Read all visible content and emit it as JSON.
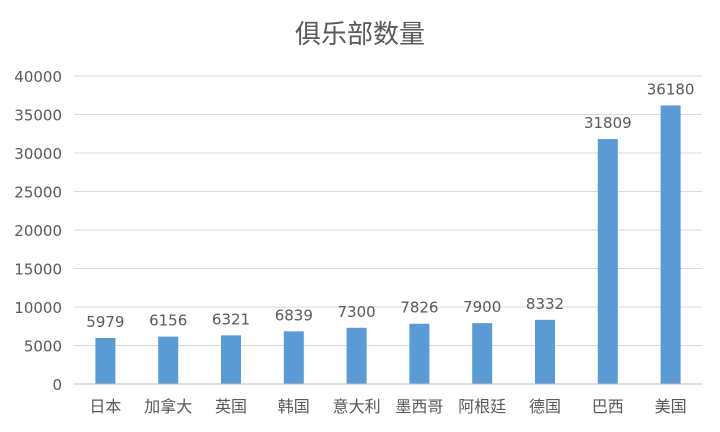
{
  "chart_data": {
    "type": "bar",
    "title": "俱乐部数量",
    "xlabel": "",
    "ylabel": "",
    "categories": [
      "日本",
      "加拿大",
      "英国",
      "韩国",
      "意大利",
      "墨西哥",
      "阿根廷",
      "德国",
      "巴西",
      "美国"
    ],
    "values": [
      5979,
      6156,
      6321,
      6839,
      7300,
      7826,
      7900,
      8332,
      31809,
      36180
    ],
    "data_labels": [
      "5979",
      "6156",
      "6321",
      "6839",
      "7300",
      "7826",
      "7900",
      "8332",
      "31809",
      "36180"
    ],
    "ylim": [
      0,
      40000
    ],
    "yticks": [
      0,
      5000,
      10000,
      15000,
      20000,
      25000,
      30000,
      35000,
      40000
    ],
    "ytick_labels": [
      "0",
      "5000",
      "10000",
      "15000",
      "20000",
      "25000",
      "30000",
      "35000",
      "40000"
    ],
    "grid": true,
    "legend": "none",
    "colors": {
      "bar": "#5b9bd5",
      "grid": "#d9d9d9",
      "axis": "#bfbfbf",
      "text": "#595959"
    }
  }
}
